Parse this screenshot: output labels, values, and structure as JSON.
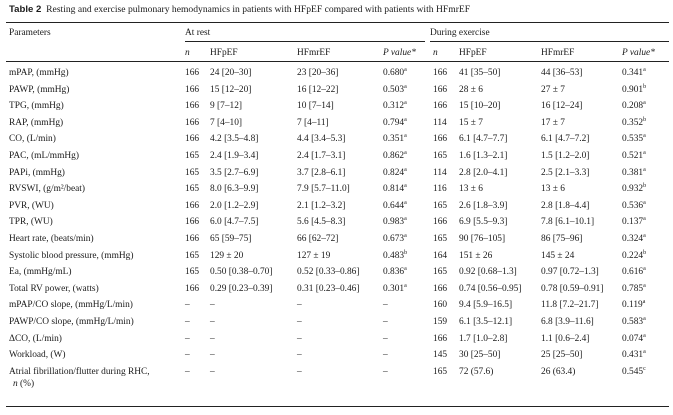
{
  "caption": {
    "label": "Table 2",
    "text": "Resting and exercise pulmonary hemodynamics in patients with HFpEF compared with patients with HFmrEF"
  },
  "headers": {
    "parameters": "Parameters",
    "at_rest": "At rest",
    "during_exercise": "During exercise",
    "n": "n",
    "hfpef": "HFpEF",
    "hfmref": "HFmrEF",
    "pvalue": "P value*"
  },
  "rows": [
    {
      "param": "mPAP, (mmHg)",
      "rn": "166",
      "rp": "24 [20–30]",
      "rm": "23 [20–36]",
      "rpv": "0.680",
      "rsup": "a",
      "en": "166",
      "ep": "41 [35–50]",
      "em": "44 [36–53]",
      "epv": "0.341",
      "esup": "a"
    },
    {
      "param": "PAWP, (mmHg)",
      "rn": "166",
      "rp": "15 [12–20]",
      "rm": "16 [12–22]",
      "rpv": "0.503",
      "rsup": "a",
      "en": "166",
      "ep": "28 ± 6",
      "em": "27 ± 7",
      "epv": "0.901",
      "esup": "b"
    },
    {
      "param": "TPG, (mmHg)",
      "rn": "166",
      "rp": "9 [7–12]",
      "rm": "10 [7–14]",
      "rpv": "0.312",
      "rsup": "a",
      "en": "166",
      "ep": "15 [10–20]",
      "em": "16 [12–24]",
      "epv": "0.208",
      "esup": "a"
    },
    {
      "param": "RAP, (mmHg)",
      "rn": "166",
      "rp": "7 [4–10]",
      "rm": "7 [4–11]",
      "rpv": "0.794",
      "rsup": "a",
      "en": "114",
      "ep": "15 ± 7",
      "em": "17 ± 7",
      "epv": "0.352",
      "esup": "b"
    },
    {
      "param": "CO, (L/min)",
      "rn": "166",
      "rp": "4.2 [3.5–4.8]",
      "rm": "4.4 [3.4–5.3]",
      "rpv": "0.351",
      "rsup": "a",
      "en": "166",
      "ep": "6.1 [4.7–7.7]",
      "em": "6.1 [4.7–7.2]",
      "epv": "0.535",
      "esup": "a"
    },
    {
      "param": "PAC, (mL/mmHg)",
      "rn": "165",
      "rp": "2.4 [1.9–3.4]",
      "rm": "2.4 [1.7–3.1]",
      "rpv": "0.862",
      "rsup": "a",
      "en": "165",
      "ep": "1.6 [1.3–2.1]",
      "em": "1.5 [1.2–2.0]",
      "epv": "0.521",
      "esup": "a"
    },
    {
      "param": "PAPi, (mmHg)",
      "rn": "165",
      "rp": "3.5 [2.7–6.9]",
      "rm": "3.7 [2.8–6.1]",
      "rpv": "0.824",
      "rsup": "a",
      "en": "114",
      "ep": "2.8 [2.0–4.1]",
      "em": "2.5 [2.1–3.3]",
      "epv": "0.381",
      "esup": "a"
    },
    {
      "param": "RVSWI",
      "param_unit": "(g/m²/beat)",
      "rn": "165",
      "rp": "8.0 [6.3–9.9]",
      "rm": "7.9 [5.7–11.0]",
      "rpv": "0.814",
      "rsup": "a",
      "en": "116",
      "ep": "13 ± 6",
      "em": "13 ± 6",
      "epv": "0.932",
      "esup": "b"
    },
    {
      "param": "PVR, (WU)",
      "rn": "166",
      "rp": "2.0 [1.2–2.9]",
      "rm": "2.1 [1.2–3.2]",
      "rpv": "0.644",
      "rsup": "a",
      "en": "165",
      "ep": "2.6 [1.8–3.9]",
      "em": "2.8 [1.8–4.4]",
      "epv": "0.536",
      "esup": "a"
    },
    {
      "param": "TPR, (WU)",
      "rn": "166",
      "rp": "6.0 [4.7–7.5]",
      "rm": "5.6 [4.5–8.3]",
      "rpv": "0.983",
      "rsup": "a",
      "en": "166",
      "ep": "6.9 [5.5–9.3]",
      "em": "7.8 [6.1–10.1]",
      "epv": "0.137",
      "esup": "a"
    },
    {
      "param": "Heart rate, (beats/min)",
      "rn": "166",
      "rp": "65 [59–75]",
      "rm": "66 [62–72]",
      "rpv": "0.673",
      "rsup": "a",
      "en": "165",
      "ep": "90 [76–105]",
      "em": "86 [75–96]",
      "epv": "0.324",
      "esup": "a"
    },
    {
      "param": "Systolic blood pressure, (mmHg)",
      "rn": "165",
      "rp": "129 ± 20",
      "rm": "127 ± 19",
      "rpv": "0.483",
      "rsup": "b",
      "en": "164",
      "ep": "151 ± 26",
      "em": "145 ± 24",
      "epv": "0.224",
      "esup": "b"
    },
    {
      "param": "Ea, (mmHg/mL)",
      "rn": "165",
      "rp": "0.50 [0.38–0.70]",
      "rm": "0.52 [0.33–0.86]",
      "rpv": "0.836",
      "rsup": "a",
      "en": "165",
      "ep": "0.92 [0.68–1.3]",
      "em": "0.97 [0.72–1.3]",
      "epv": "0.616",
      "esup": "a"
    },
    {
      "param": "Total RV power, (watts)",
      "rn": "166",
      "rp": "0.29 [0.23–0.39]",
      "rm": "0.31 [0.23–0.46]",
      "rpv": "0.301",
      "rsup": "a",
      "en": "166",
      "ep": "0.74 [0.56–0.95]",
      "em": "0.78 [0.59–0.91]",
      "epv": "0.785",
      "esup": "a"
    },
    {
      "param": "mPAP/CO slope, (mmHg/L/min)",
      "rn": "–",
      "rp": "–",
      "rm": "–",
      "rpv": "–",
      "rsup": "",
      "en": "160",
      "ep": "9.4 [5.9–16.5]",
      "em": "11.8 [7.2–21.7]",
      "epv": "0.119",
      "esup": "a"
    },
    {
      "param": "PAWP/CO slope, (mmHg/L/min)",
      "rn": "–",
      "rp": "–",
      "rm": "–",
      "rpv": "–",
      "rsup": "",
      "en": "159",
      "ep": "6.1 [3.5–12.1]",
      "em": "6.8 [3.9–11.6]",
      "epv": "0.583",
      "esup": "a"
    },
    {
      "param": "ΔCO, (L/min)",
      "rn": "–",
      "rp": "–",
      "rm": "–",
      "rpv": "–",
      "rsup": "",
      "en": "166",
      "ep": "1.7 [1.0–2.8]",
      "em": "1.1 [0.6–2.4]",
      "epv": "0.074",
      "esup": "a"
    },
    {
      "param": "Workload, (W)",
      "rn": "–",
      "rp": "–",
      "rm": "–",
      "rpv": "–",
      "rsup": "",
      "en": "145",
      "ep": "30 [25–50]",
      "em": "25 [25–50]",
      "epv": "0.431",
      "esup": "a"
    },
    {
      "param": "Atrial fibrillation/flutter during RHC,",
      "param_line2": "n (%)",
      "rn": "–",
      "rp": "–",
      "rm": "–",
      "rpv": "–",
      "rsup": "",
      "en": "165",
      "ep": "72 (57.6)",
      "em": "26 (63.4)",
      "epv": "0.545",
      "esup": "c"
    }
  ]
}
